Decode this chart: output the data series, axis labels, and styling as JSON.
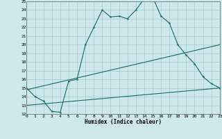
{
  "title": "",
  "xlabel": "Humidex (Indice chaleur)",
  "bg_color": "#cce8e8",
  "grid_color": "#aacccc",
  "line_color": "#1a6b6b",
  "xmin": 0,
  "xmax": 23,
  "ymin": 12,
  "ymax": 25,
  "main_x": [
    0,
    1,
    2,
    3,
    4,
    5,
    6,
    7,
    8,
    9,
    10,
    11,
    12,
    13,
    14,
    15,
    16,
    17,
    18,
    19,
    20,
    21,
    22,
    23
  ],
  "main_y": [
    15.0,
    14.0,
    13.5,
    12.3,
    12.2,
    15.8,
    16.0,
    20.0,
    22.0,
    24.0,
    23.2,
    23.3,
    23.0,
    24.0,
    25.3,
    25.5,
    23.3,
    22.5,
    20.0,
    18.8,
    17.8,
    16.3,
    15.5,
    15.0
  ],
  "line2_x": [
    0,
    23
  ],
  "line2_y": [
    14.8,
    20.0
  ],
  "line3_x": [
    0,
    23
  ],
  "line3_y": [
    13.0,
    15.0
  ]
}
